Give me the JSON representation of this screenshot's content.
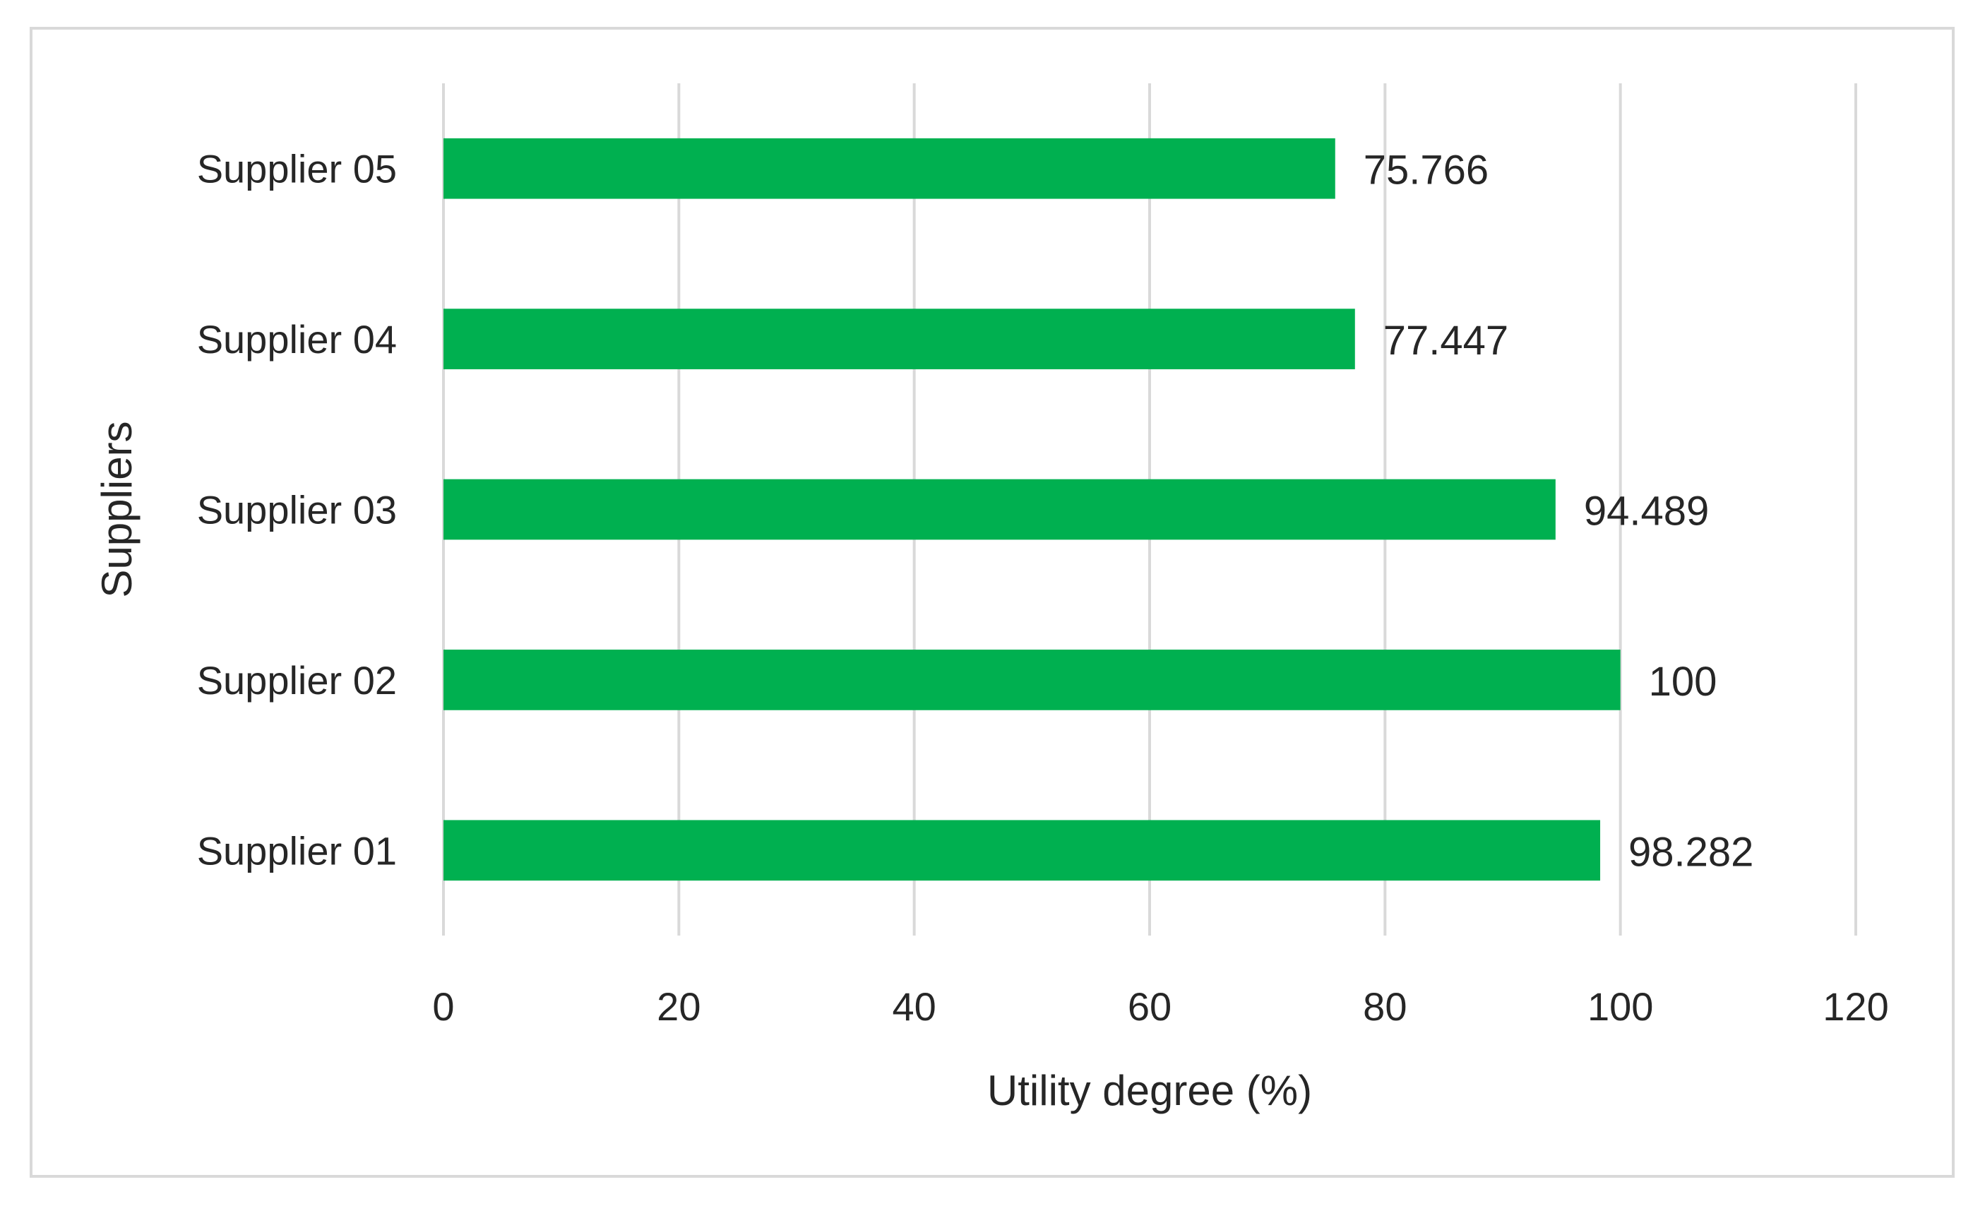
{
  "chart_data": {
    "type": "bar",
    "orientation": "horizontal",
    "categories": [
      "Supplier 01",
      "Supplier 02",
      "Supplier 03",
      "Supplier 04",
      "Supplier 05"
    ],
    "values": [
      98.282,
      100,
      94.489,
      77.447,
      75.766
    ],
    "value_labels": [
      "98.282",
      "100",
      "94.489",
      "77.447",
      "75.766"
    ],
    "xlabel": "Utility degree (%)",
    "ylabel": "Suppliers",
    "xlim": [
      0,
      120
    ],
    "xticks": [
      0,
      20,
      40,
      60,
      80,
      100,
      120
    ],
    "grid": "vertical",
    "legend": "none",
    "bar_color": "#00B050"
  }
}
